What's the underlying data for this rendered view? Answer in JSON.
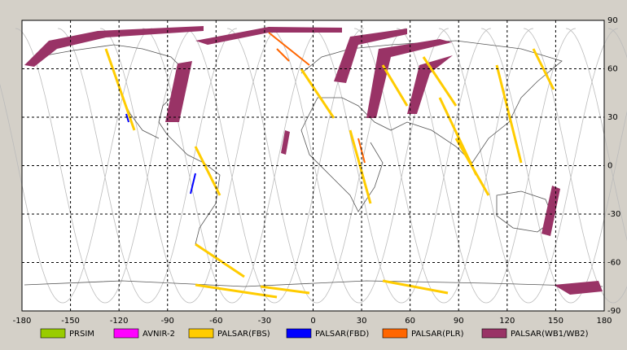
{
  "map": {
    "xlim": [
      -180,
      180
    ],
    "ylim": [
      -90,
      90
    ],
    "xticks": [
      -180,
      -150,
      -120,
      -90,
      -60,
      -30,
      0,
      30,
      60,
      90,
      120,
      150,
      180
    ],
    "yticks": [
      -90,
      -60,
      -30,
      0,
      30,
      60,
      90
    ],
    "grid": true,
    "legend": [
      {
        "name": "PRSIM",
        "color": "#99cc00"
      },
      {
        "name": "AVNIR-2",
        "color": "#ff00ff"
      },
      {
        "name": "PALSAR(FBS)",
        "color": "#ffcc00"
      },
      {
        "name": "PALSAR(FBD)",
        "color": "#0000ff"
      },
      {
        "name": "PALSAR(PLR)",
        "color": "#ff6600"
      },
      {
        "name": "PALSAR(WB1/WB2)",
        "color": "#993366"
      }
    ]
  }
}
